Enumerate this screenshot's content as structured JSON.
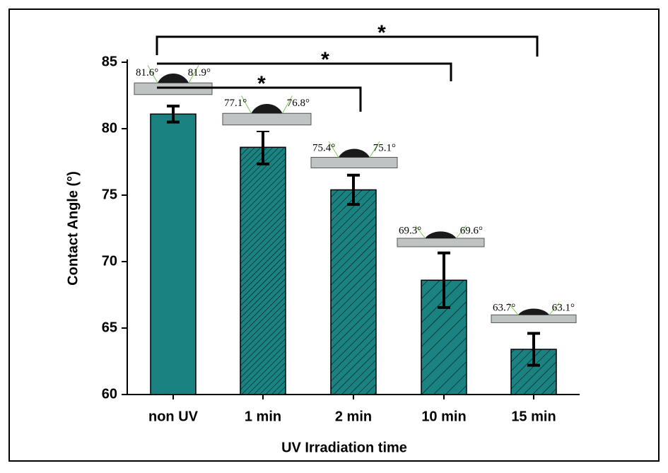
{
  "chart_data": {
    "type": "bar",
    "x_label": "UV Irradiation time",
    "y_label": "Contact Angle (°)",
    "categories": [
      "non UV",
      "1 min",
      "2 min",
      "10 min",
      "15 min"
    ],
    "values": [
      81.1,
      78.6,
      75.4,
      68.6,
      63.4
    ],
    "errors": [
      0.6,
      1.25,
      1.1,
      2.05,
      1.2
    ],
    "color": "#1b8282",
    "ylim": [
      60,
      85
    ],
    "yticks": [
      60,
      65,
      70,
      75,
      80,
      85
    ],
    "droplet_angles": [
      {
        "left": "81.6°",
        "right": "81.9°"
      },
      {
        "left": "77.1°",
        "right": "76.8°"
      },
      {
        "left": "75.4°",
        "right": "75.1°"
      },
      {
        "left": "69.3°",
        "right": "69.6°"
      },
      {
        "left": "63.7°",
        "right": "63.1°"
      }
    ],
    "significance": [
      "*",
      "*",
      "*"
    ]
  }
}
